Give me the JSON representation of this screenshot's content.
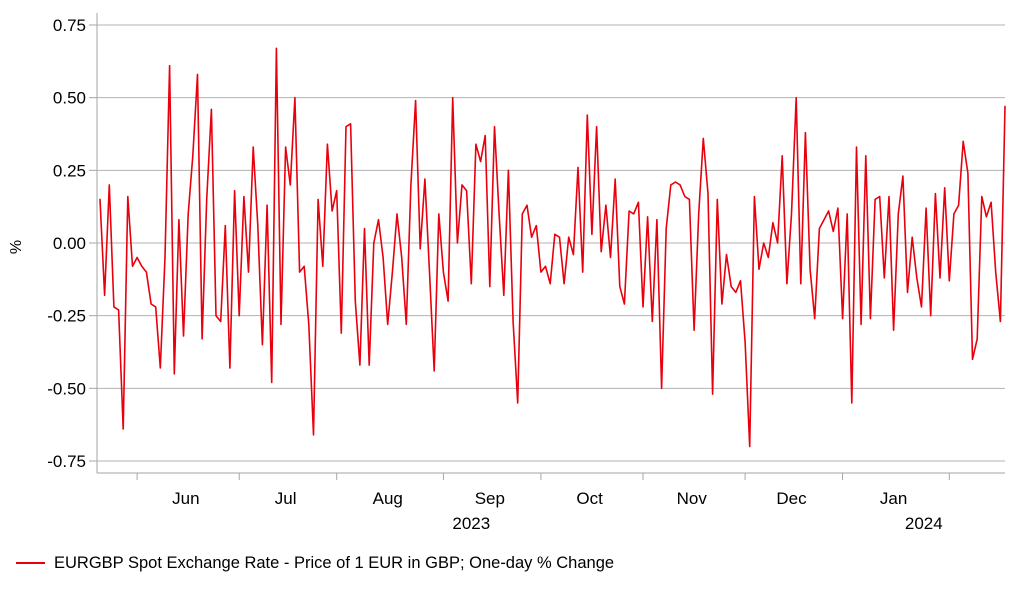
{
  "chart_data": {
    "type": "line",
    "title": "",
    "ylabel": "%",
    "grid": true,
    "grid_color": "#b3b3b3",
    "axis_color": "#a6a6a6",
    "text_color": "#000000",
    "legend_position": "bottom-left",
    "y_axis": {
      "min": -0.81,
      "max": 0.8,
      "ticks": [
        0.75,
        0.5,
        0.25,
        0.0,
        -0.25,
        -0.5,
        -0.75
      ]
    },
    "x_axis": {
      "unit": "trading-day-index",
      "range_note": "daily observations, mid-May 2023 through mid-February 2024",
      "month_ticks": [
        {
          "label": "Jun",
          "start_index": 8,
          "label_index": 18.5
        },
        {
          "label": "Jul",
          "start_index": 30,
          "label_index": 40
        },
        {
          "label": "Aug",
          "start_index": 51,
          "label_index": 62
        },
        {
          "label": "Sep",
          "start_index": 74,
          "label_index": 84
        },
        {
          "label": "Oct",
          "start_index": 95,
          "label_index": 105.5
        },
        {
          "label": "Nov",
          "start_index": 117,
          "label_index": 127.5
        },
        {
          "label": "Dec",
          "start_index": 139,
          "label_index": 149
        },
        {
          "label": "Jan",
          "start_index": 160,
          "label_index": 171
        },
        {
          "label": "",
          "start_index": 183,
          "label_index": null
        }
      ],
      "year_labels": [
        {
          "label": "2023",
          "label_index": 80
        },
        {
          "label": "2024",
          "label_index": 177.5
        }
      ]
    },
    "legend": {
      "swatch_color": "#e8000d",
      "label": "EURGBP Spot Exchange Rate - Price of 1 EUR in GBP; One-day % Change"
    },
    "series": [
      {
        "name": "EURGBP Spot Exchange Rate - Price of 1 EUR in GBP; One-day % Change",
        "color": "#e8000d",
        "values": [
          0.15,
          -0.18,
          0.2,
          -0.22,
          -0.23,
          -0.64,
          0.16,
          -0.08,
          -0.05,
          -0.08,
          -0.1,
          -0.21,
          -0.22,
          -0.43,
          -0.05,
          0.61,
          -0.45,
          0.08,
          -0.32,
          0.1,
          0.3,
          0.58,
          -0.33,
          0.15,
          0.46,
          -0.25,
          -0.27,
          0.06,
          -0.43,
          0.18,
          -0.25,
          0.16,
          -0.1,
          0.33,
          0.06,
          -0.35,
          0.13,
          -0.48,
          0.67,
          -0.28,
          0.33,
          0.2,
          0.5,
          -0.1,
          -0.08,
          -0.28,
          -0.66,
          0.15,
          -0.08,
          0.34,
          0.11,
          0.18,
          -0.31,
          0.4,
          0.41,
          -0.2,
          -0.42,
          0.05,
          -0.42,
          0.0,
          0.08,
          -0.05,
          -0.28,
          -0.1,
          0.1,
          -0.05,
          -0.28,
          0.2,
          0.49,
          -0.02,
          0.22,
          -0.1,
          -0.44,
          0.1,
          -0.1,
          -0.2,
          0.5,
          0.0,
          0.2,
          0.18,
          -0.14,
          0.34,
          0.28,
          0.37,
          -0.15,
          0.4,
          0.1,
          -0.18,
          0.25,
          -0.27,
          -0.55,
          0.1,
          0.13,
          0.02,
          0.06,
          -0.1,
          -0.08,
          -0.14,
          0.03,
          0.02,
          -0.14,
          0.02,
          -0.04,
          0.26,
          -0.1,
          0.44,
          0.03,
          0.4,
          -0.03,
          0.13,
          -0.05,
          0.22,
          -0.15,
          -0.21,
          0.11,
          0.1,
          0.14,
          -0.22,
          0.09,
          -0.27,
          0.08,
          -0.5,
          0.05,
          0.2,
          0.21,
          0.2,
          0.16,
          0.15,
          -0.3,
          0.1,
          0.36,
          0.17,
          -0.52,
          0.15,
          -0.21,
          -0.04,
          -0.15,
          -0.17,
          -0.13,
          -0.34,
          -0.7,
          0.16,
          -0.09,
          0.0,
          -0.05,
          0.07,
          0.0,
          0.3,
          -0.14,
          0.1,
          0.5,
          -0.14,
          0.38,
          -0.09,
          -0.26,
          0.05,
          0.08,
          0.11,
          0.04,
          0.12,
          -0.26,
          0.1,
          -0.55,
          0.33,
          -0.28,
          0.3,
          -0.26,
          0.15,
          0.16,
          -0.12,
          0.16,
          -0.3,
          0.1,
          0.23,
          -0.17,
          0.02,
          -0.12,
          -0.22,
          0.12,
          -0.25,
          0.17,
          -0.12,
          0.19,
          -0.13,
          0.1,
          0.13,
          0.35,
          0.24,
          -0.4,
          -0.33,
          0.16,
          0.09,
          0.14,
          -0.1,
          -0.27,
          0.47
        ]
      }
    ]
  }
}
